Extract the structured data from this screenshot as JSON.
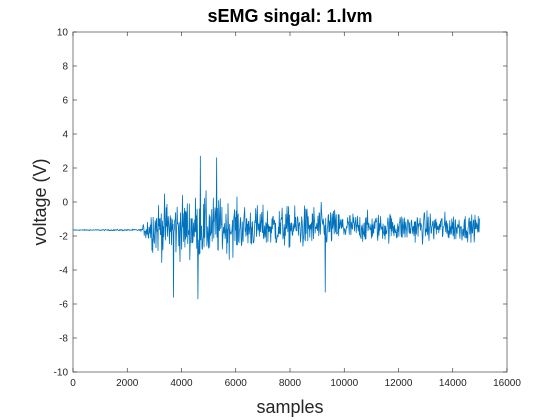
{
  "chart_data": {
    "type": "line",
    "title": "sEMG singal: 1.lvm",
    "xlabel": "samples",
    "ylabel": "voltage (V)",
    "xlim": [
      0,
      16000
    ],
    "ylim": [
      -10,
      10
    ],
    "x_ticks": [
      0,
      2000,
      4000,
      6000,
      8000,
      10000,
      12000,
      14000,
      16000
    ],
    "y_ticks": [
      -10,
      -8,
      -6,
      -4,
      -2,
      0,
      2,
      4,
      6,
      8,
      10
    ],
    "grid": false,
    "legend": "none",
    "series": [
      {
        "color": "#0072BD",
        "x_range": [
          0,
          15000
        ],
        "approx_profile": [
          {
            "x": 0,
            "mean": -1.65,
            "spread": 0.05
          },
          {
            "x": 2500,
            "mean": -1.65,
            "spread": 0.1
          },
          {
            "x": 3000,
            "mean": -1.5,
            "spread": 3.0
          },
          {
            "x": 4000,
            "mean": -1.5,
            "spread": 3.5
          },
          {
            "x": 5000,
            "mean": -1.5,
            "spread": 3.5
          },
          {
            "x": 6000,
            "mean": -1.5,
            "spread": 2.8
          },
          {
            "x": 7000,
            "mean": -1.5,
            "spread": 2.3
          },
          {
            "x": 8000,
            "mean": -1.5,
            "spread": 2.3
          },
          {
            "x": 9000,
            "mean": -1.5,
            "spread": 2.5
          },
          {
            "x": 10000,
            "mean": -1.5,
            "spread": 1.8
          },
          {
            "x": 11000,
            "mean": -1.5,
            "spread": 1.6
          },
          {
            "x": 12000,
            "mean": -1.5,
            "spread": 1.6
          },
          {
            "x": 13000,
            "mean": -1.5,
            "spread": 1.7
          },
          {
            "x": 14000,
            "mean": -1.5,
            "spread": 1.6
          },
          {
            "x": 15000,
            "mean": -1.5,
            "spread": 1.3
          }
        ],
        "peaks": [
          {
            "x": 4700,
            "y": 2.7
          },
          {
            "x": 5300,
            "y": 2.6
          },
          {
            "x": 3700,
            "y": -5.6
          },
          {
            "x": 4600,
            "y": -5.7
          },
          {
            "x": 9300,
            "y": -5.3
          }
        ]
      }
    ]
  }
}
